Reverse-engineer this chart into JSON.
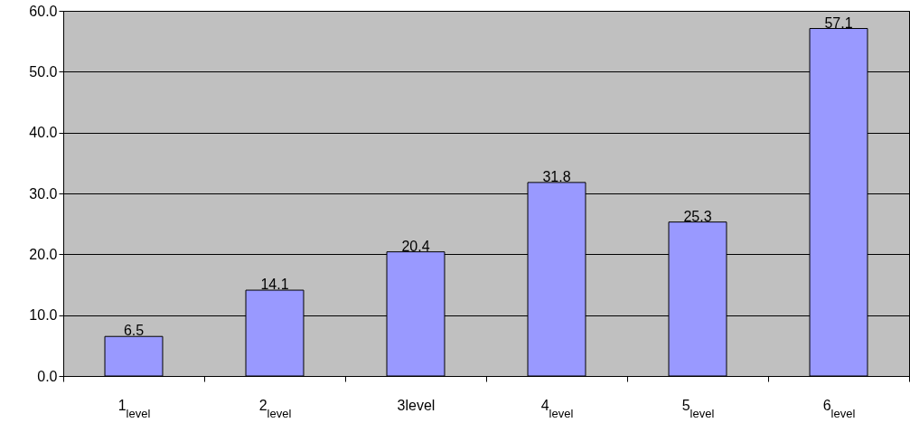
{
  "chart_data": {
    "type": "bar",
    "categories": [
      "1$_{level}$",
      "2$_{level}$",
      "3level",
      "4$_{level}$",
      "5$_{level}$",
      "6$_{level}$"
    ],
    "values": [
      6.5,
      14.1,
      20.4,
      31.8,
      25.3,
      57.1
    ],
    "color": "#9999ff",
    "ylim": [
      0,
      60
    ],
    "yticks": [
      {
        "value": 0,
        "label": "0.0"
      },
      {
        "value": 10,
        "label": "10.0"
      },
      {
        "value": 20,
        "label": "20.0"
      },
      {
        "value": 30,
        "label": "30.0"
      },
      {
        "value": 40,
        "label": "40.0"
      },
      {
        "value": 50,
        "label": "50.0"
      },
      {
        "value": 60,
        "label": "60.0"
      }
    ],
    "grid": "y",
    "data_labels": true
  }
}
